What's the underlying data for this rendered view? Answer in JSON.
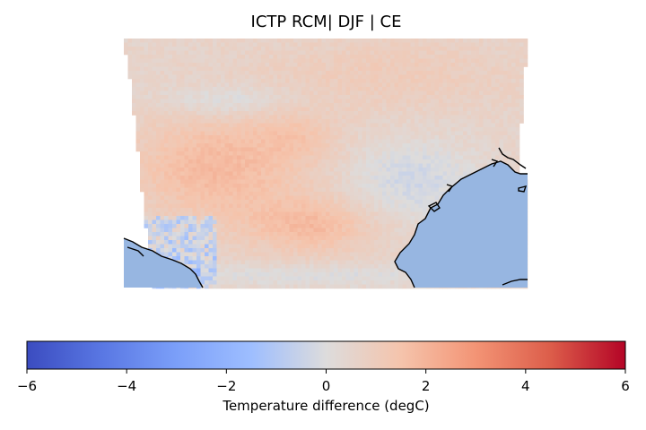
{
  "map": {
    "title": "ICTP RCM| DJF | CE",
    "ocean_color": "#97b6e1",
    "land_outline_color": "#000000"
  },
  "colorbar": {
    "label": "Temperature difference (degC)",
    "colormap": "coolwarm",
    "min": -6,
    "max": 6,
    "ticks": [
      -6,
      -4,
      -2,
      0,
      2,
      4,
      6
    ],
    "tick_labels": [
      "−6",
      "−4",
      "−2",
      "0",
      "2",
      "4",
      "6"
    ],
    "colors": {
      "low": "#3b4cc0",
      "mid": "#dddcdc",
      "high": "#b40426"
    }
  }
}
